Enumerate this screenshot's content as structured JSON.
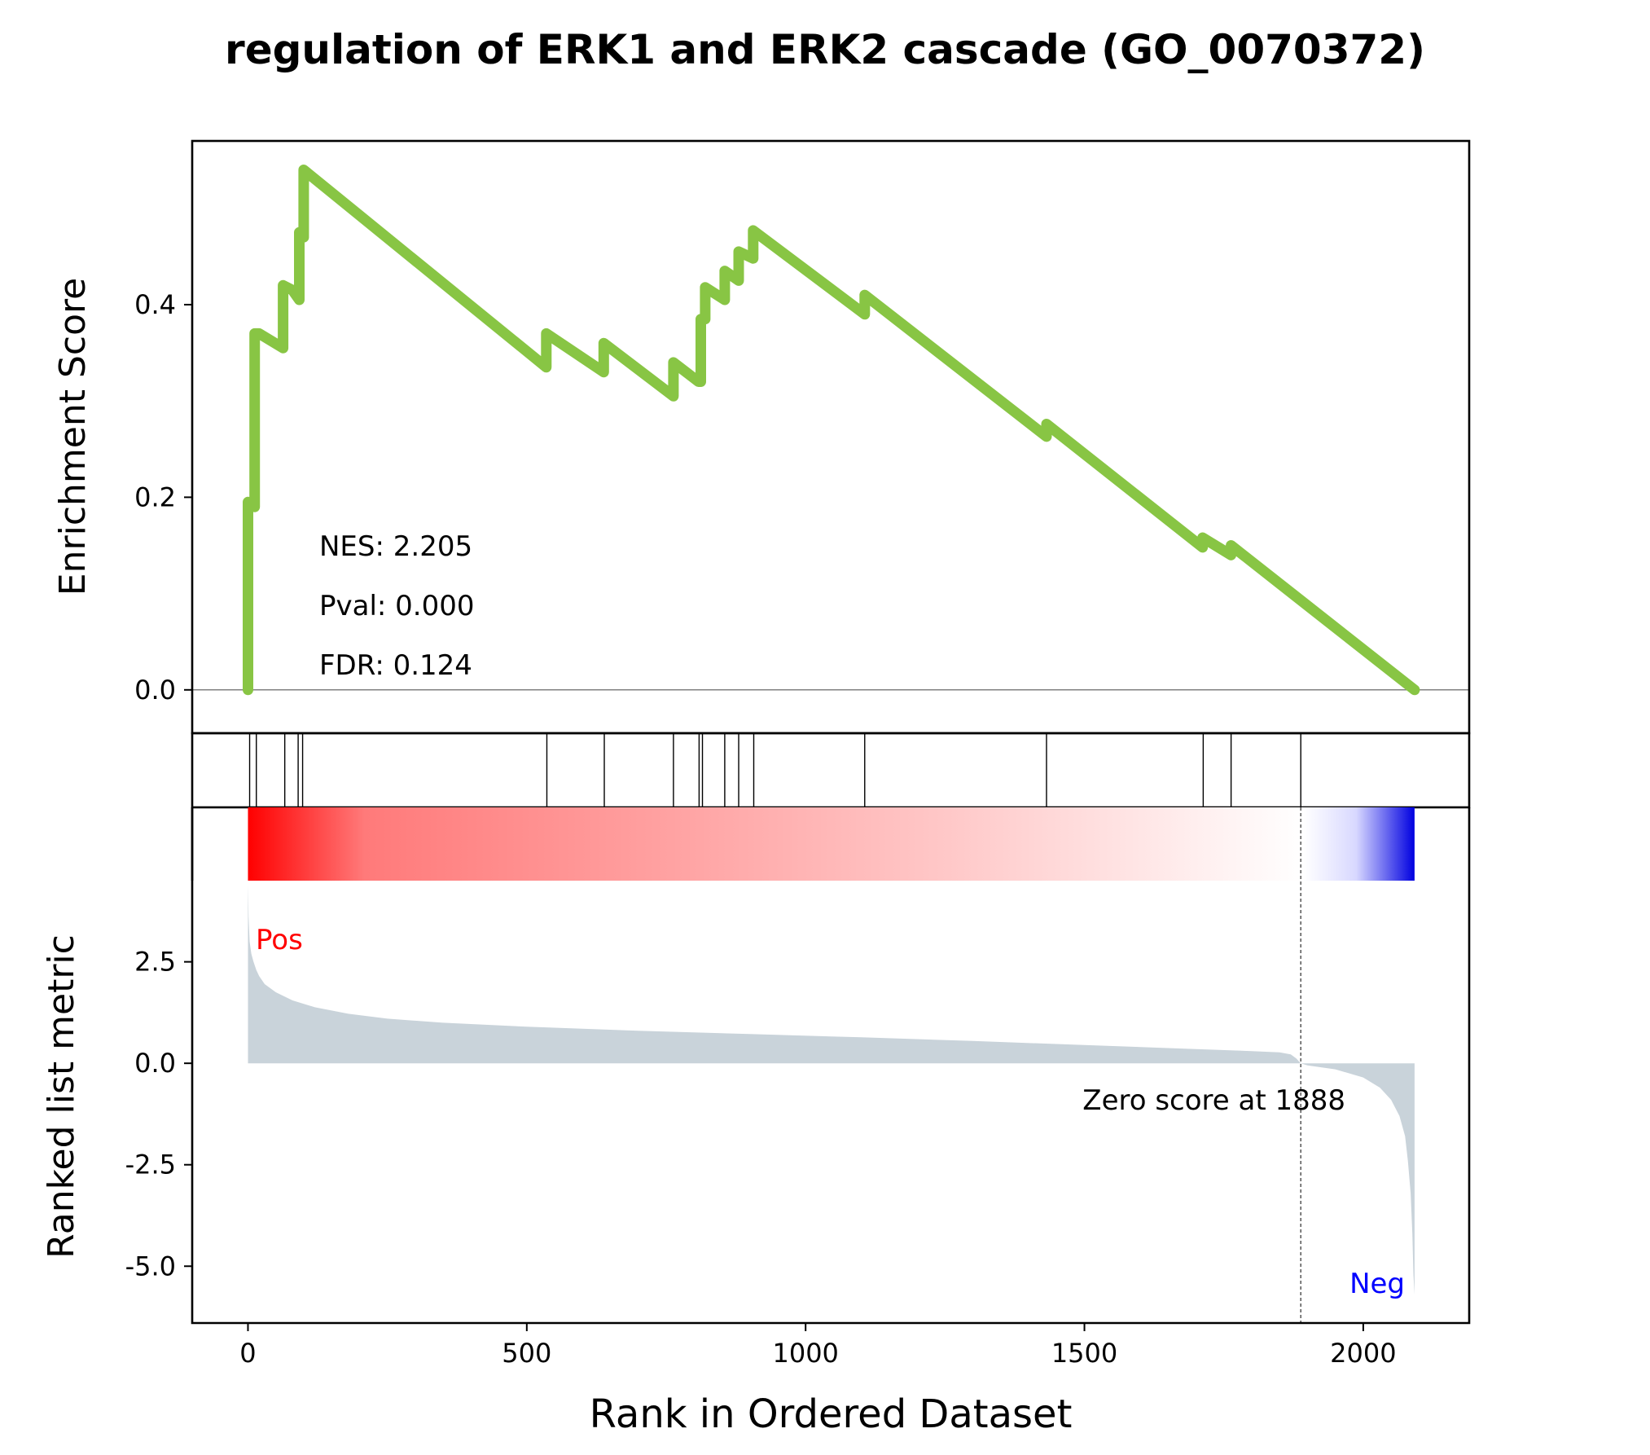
{
  "chart_data": {
    "type": "line",
    "title": "regulation of ERK1 and ERK2 cascade (GO_0070372)",
    "xlabel": "Rank in Ordered Dataset",
    "xlim": [
      -100,
      2190
    ],
    "x_ticks": [
      "0",
      "500",
      "1000",
      "1500",
      "2000"
    ],
    "panels": {
      "enrichment": {
        "ylabel": "Enrichment Score",
        "ylim": [
          -0.045,
          0.57
        ],
        "y_ticks": [
          "0.0",
          "0.2",
          "0.4"
        ],
        "line_color": "#88c544",
        "stats": {
          "nes": "NES: 2.205",
          "pval": "Pval: 0.000",
          "fdr": "FDR: 0.124"
        },
        "series": [
          {
            "x": [
              0,
              0,
              12,
              12,
              20,
              20,
              63,
              63,
              80,
              80,
              92,
              92,
              100,
              100,
              535,
              535,
              638,
              638,
              763,
              763,
              808,
              808,
              812,
              812,
              820,
              820,
              855,
              855,
              880,
              880,
              906,
              906,
              1106,
              1106,
              1432,
              1432,
              1712,
              1712,
              1763,
              1763,
              1888,
              2092
            ],
            "y": [
              0.0,
              0.195,
              0.19,
              0.37,
              0.37,
              0.37,
              0.355,
              0.42,
              0.415,
              0.415,
              0.405,
              0.475,
              0.47,
              0.54,
              0.335,
              0.37,
              0.33,
              0.36,
              0.305,
              0.34,
              0.32,
              0.32,
              0.32,
              0.385,
              0.385,
              0.418,
              0.405,
              0.435,
              0.425,
              0.455,
              0.448,
              0.477,
              0.39,
              0.41,
              0.263,
              0.276,
              0.148,
              0.158,
              0.14,
              0.15,
              0.093,
              0.0
            ]
          }
        ]
      },
      "hits": {
        "positions": [
          3,
          15,
          66,
          90,
          98,
          536,
          639,
          763,
          809,
          815,
          855,
          880,
          907,
          1106,
          1432,
          1713,
          1763,
          1888
        ]
      },
      "heatmap": {
        "colors": [
          "#ff0000",
          "#ff7a7a",
          "#ffa0a0",
          "#ffc8c8",
          "#ffffff",
          "#d8d8ff",
          "#0000e0"
        ],
        "stops": [
          0,
          0.1,
          0.35,
          0.6,
          0.905,
          0.95,
          1.0
        ]
      },
      "ranked_metric": {
        "ylabel": "Ranked list metric",
        "ylim": [
          -6.4,
          4.5
        ],
        "y_ticks": [
          "2.5",
          "0.0",
          "-2.5",
          "-5.0"
        ],
        "fill_color": "#c9d3da",
        "pos_label": "Pos",
        "neg_label": "Neg",
        "pos_color": "#ff0000",
        "neg_color": "#0000ff",
        "zero_score_text": "Zero score at 1888",
        "zero_score_rank": 1888,
        "series": [
          {
            "x": [
              0,
              1,
              3,
              6,
              10,
              15,
              20,
              30,
              50,
              80,
              120,
              180,
              250,
              350,
              500,
              700,
              900,
              1100,
              1300,
              1500,
              1700,
              1800,
              1850,
              1870,
              1880,
              1888,
              1900,
              1950,
              2000,
              2030,
              2050,
              2065,
              2075,
              2080,
              2085,
              2088,
              2090,
              2092
            ],
            "y": [
              4.4,
              3.6,
              3.0,
              2.7,
              2.5,
              2.3,
              2.15,
              1.95,
              1.75,
              1.55,
              1.38,
              1.22,
              1.1,
              1.0,
              0.9,
              0.8,
              0.72,
              0.64,
              0.55,
              0.45,
              0.35,
              0.3,
              0.27,
              0.22,
              0.12,
              0.0,
              -0.05,
              -0.15,
              -0.35,
              -0.6,
              -0.9,
              -1.3,
              -1.8,
              -2.4,
              -3.2,
              -4.2,
              -5.2,
              -5.7
            ]
          }
        ]
      }
    }
  }
}
